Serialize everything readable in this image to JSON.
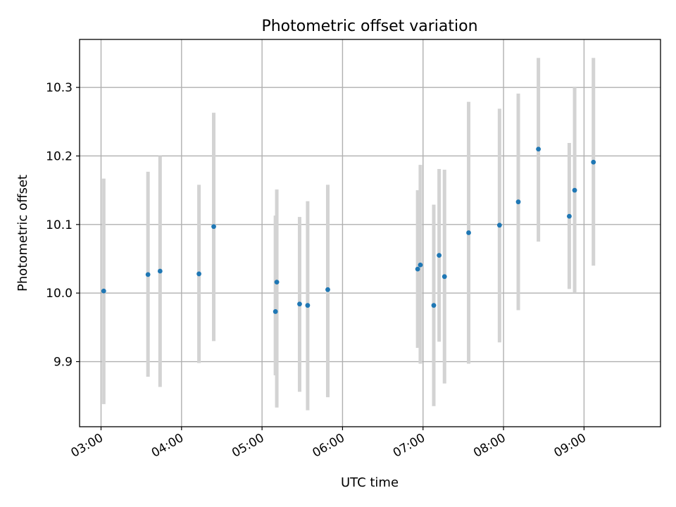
{
  "chart_data": {
    "type": "scatter",
    "title": "Photometric offset variation",
    "xlabel": "UTC time",
    "ylabel": "Photometric offset",
    "x_axis": "time-of-day",
    "xlim": [
      "02:44",
      "09:57"
    ],
    "ylim": [
      9.805,
      10.37
    ],
    "grid": true,
    "xticks": [
      "03:00",
      "04:00",
      "05:00",
      "06:00",
      "07:00",
      "08:00",
      "09:00"
    ],
    "yticks": [
      9.9,
      10.0,
      10.1,
      10.2,
      10.3
    ],
    "ytick_labels": [
      "9.9",
      "10.0",
      "10.1",
      "10.2",
      "10.3"
    ],
    "colors": {
      "point": "#1f77b4",
      "errorbar": "#d3d3d3",
      "grid": "#b0b0b0"
    },
    "points": [
      {
        "time": "03:02",
        "y": 10.003,
        "ylow": 9.838,
        "yhigh": 10.167
      },
      {
        "time": "03:35",
        "y": 10.027,
        "ylow": 9.878,
        "yhigh": 10.177
      },
      {
        "time": "03:44",
        "y": 10.032,
        "ylow": 9.863,
        "yhigh": 10.2
      },
      {
        "time": "04:13",
        "y": 10.028,
        "ylow": 9.898,
        "yhigh": 10.158
      },
      {
        "time": "04:24",
        "y": 10.097,
        "ylow": 9.93,
        "yhigh": 10.263
      },
      {
        "time": "05:10",
        "y": 9.973,
        "ylow": 9.88,
        "yhigh": 10.113
      },
      {
        "time": "05:11",
        "y": 10.016,
        "ylow": 9.833,
        "yhigh": 10.151
      },
      {
        "time": "05:28",
        "y": 9.984,
        "ylow": 9.856,
        "yhigh": 10.111
      },
      {
        "time": "05:34",
        "y": 9.982,
        "ylow": 9.829,
        "yhigh": 10.134
      },
      {
        "time": "05:49",
        "y": 10.005,
        "ylow": 9.848,
        "yhigh": 10.158
      },
      {
        "time": "06:56",
        "y": 10.035,
        "ylow": 9.92,
        "yhigh": 10.15
      },
      {
        "time": "06:58",
        "y": 10.041,
        "ylow": 9.897,
        "yhigh": 10.187
      },
      {
        "time": "07:08",
        "y": 9.982,
        "ylow": 9.835,
        "yhigh": 10.129
      },
      {
        "time": "07:12",
        "y": 10.055,
        "ylow": 9.929,
        "yhigh": 10.181
      },
      {
        "time": "07:16",
        "y": 10.024,
        "ylow": 9.868,
        "yhigh": 10.18
      },
      {
        "time": "07:34",
        "y": 10.088,
        "ylow": 9.897,
        "yhigh": 10.279
      },
      {
        "time": "07:57",
        "y": 10.099,
        "ylow": 9.928,
        "yhigh": 10.269
      },
      {
        "time": "08:11",
        "y": 10.133,
        "ylow": 9.975,
        "yhigh": 10.291
      },
      {
        "time": "08:26",
        "y": 10.21,
        "ylow": 10.075,
        "yhigh": 10.343
      },
      {
        "time": "08:49",
        "y": 10.112,
        "ylow": 10.006,
        "yhigh": 10.219
      },
      {
        "time": "08:53",
        "y": 10.15,
        "ylow": 10.0,
        "yhigh": 10.3
      },
      {
        "time": "09:07",
        "y": 10.191,
        "ylow": 10.04,
        "yhigh": 10.343
      }
    ]
  }
}
